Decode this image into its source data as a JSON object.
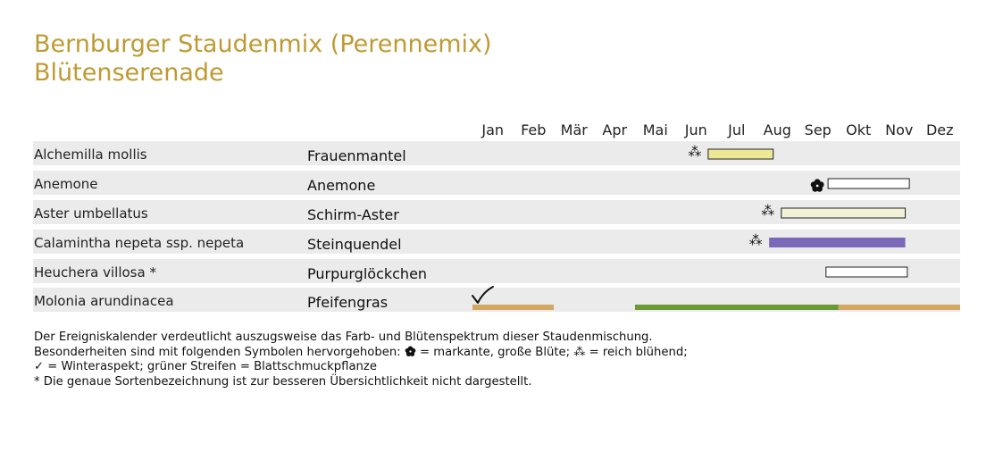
{
  "title": {
    "line1": "Bernburger Staudenmix (Perennemix)",
    "line2": "Blütenserenade"
  },
  "colors": {
    "title": "#bf9a33",
    "row_background": "#ebebec",
    "winter_aspect": "#d1a762",
    "foliage": "#6a9a38"
  },
  "chart_data": {
    "type": "gantt",
    "months": [
      "Jan",
      "Feb",
      "Mär",
      "Apr",
      "Mai",
      "Jun",
      "Jul",
      "Aug",
      "Sep",
      "Okt",
      "Nov",
      "Dez"
    ],
    "rows": [
      {
        "latin": "Alchemilla mollis",
        "german": "Frauenmantel",
        "marker": "reich-bluehend",
        "bars": [
          {
            "start": 5.8,
            "end": 7.4,
            "color": "#ede896",
            "outlined": true,
            "type": "bloom"
          }
        ]
      },
      {
        "latin": "Anemone",
        "german": "Anemone",
        "marker": "markante-bluete",
        "bars": [
          {
            "start": 8.75,
            "end": 10.75,
            "color": "#ffffff",
            "outlined": true,
            "type": "bloom"
          }
        ]
      },
      {
        "latin": "Aster umbellatus",
        "german": "Schirm-Aster",
        "marker": "reich-bluehend",
        "bars": [
          {
            "start": 7.6,
            "end": 10.65,
            "color": "#f3f1d8",
            "outlined": true,
            "type": "bloom"
          }
        ]
      },
      {
        "latin": "Calamintha nepeta ssp. nepeta",
        "german": "Steinquendel",
        "marker": "reich-bluehend",
        "bars": [
          {
            "start": 7.3,
            "end": 10.65,
            "color": "#7b68b6",
            "outlined": false,
            "type": "bloom"
          }
        ]
      },
      {
        "latin": "Heuchera villosa *",
        "german": "Purpurglöckchen",
        "marker": "",
        "bars": [
          {
            "start": 8.7,
            "end": 10.7,
            "color": "#ffffff",
            "outlined": true,
            "type": "bloom"
          }
        ]
      },
      {
        "latin": "Molonia arundinacea",
        "german": "Pfeifengras",
        "marker": "winteraspekt",
        "bars": [
          {
            "start": 0.0,
            "end": 2.0,
            "color": "#d1a762",
            "outlined": false,
            "type": "winteraspekt"
          },
          {
            "start": 4.0,
            "end": 9.0,
            "color": "#6a9a38",
            "outlined": false,
            "type": "blattschmuck"
          },
          {
            "start": 9.0,
            "end": 12.0,
            "color": "#d1a762",
            "outlined": false,
            "type": "winteraspekt"
          }
        ]
      }
    ]
  },
  "legend": {
    "line1": "Der Ereigniskalender verdeutlicht auszugsweise das Farb- und Blütenspektrum dieser Staudenmischung.",
    "line2_a": "Besonderheiten sind mit folgenden Symbolen hervorgehoben: ",
    "line2_b": " = markante, große Blüte; ",
    "line2_c": "⁂",
    "line2_d": " = reich blühend;",
    "line3": "✓ = Winteraspekt; grüner Streifen = Blattschmuckpflanze",
    "line4": "* Die genaue Sortenbezeichnung ist zur besseren Übersichtlichkeit nicht dargestellt."
  }
}
